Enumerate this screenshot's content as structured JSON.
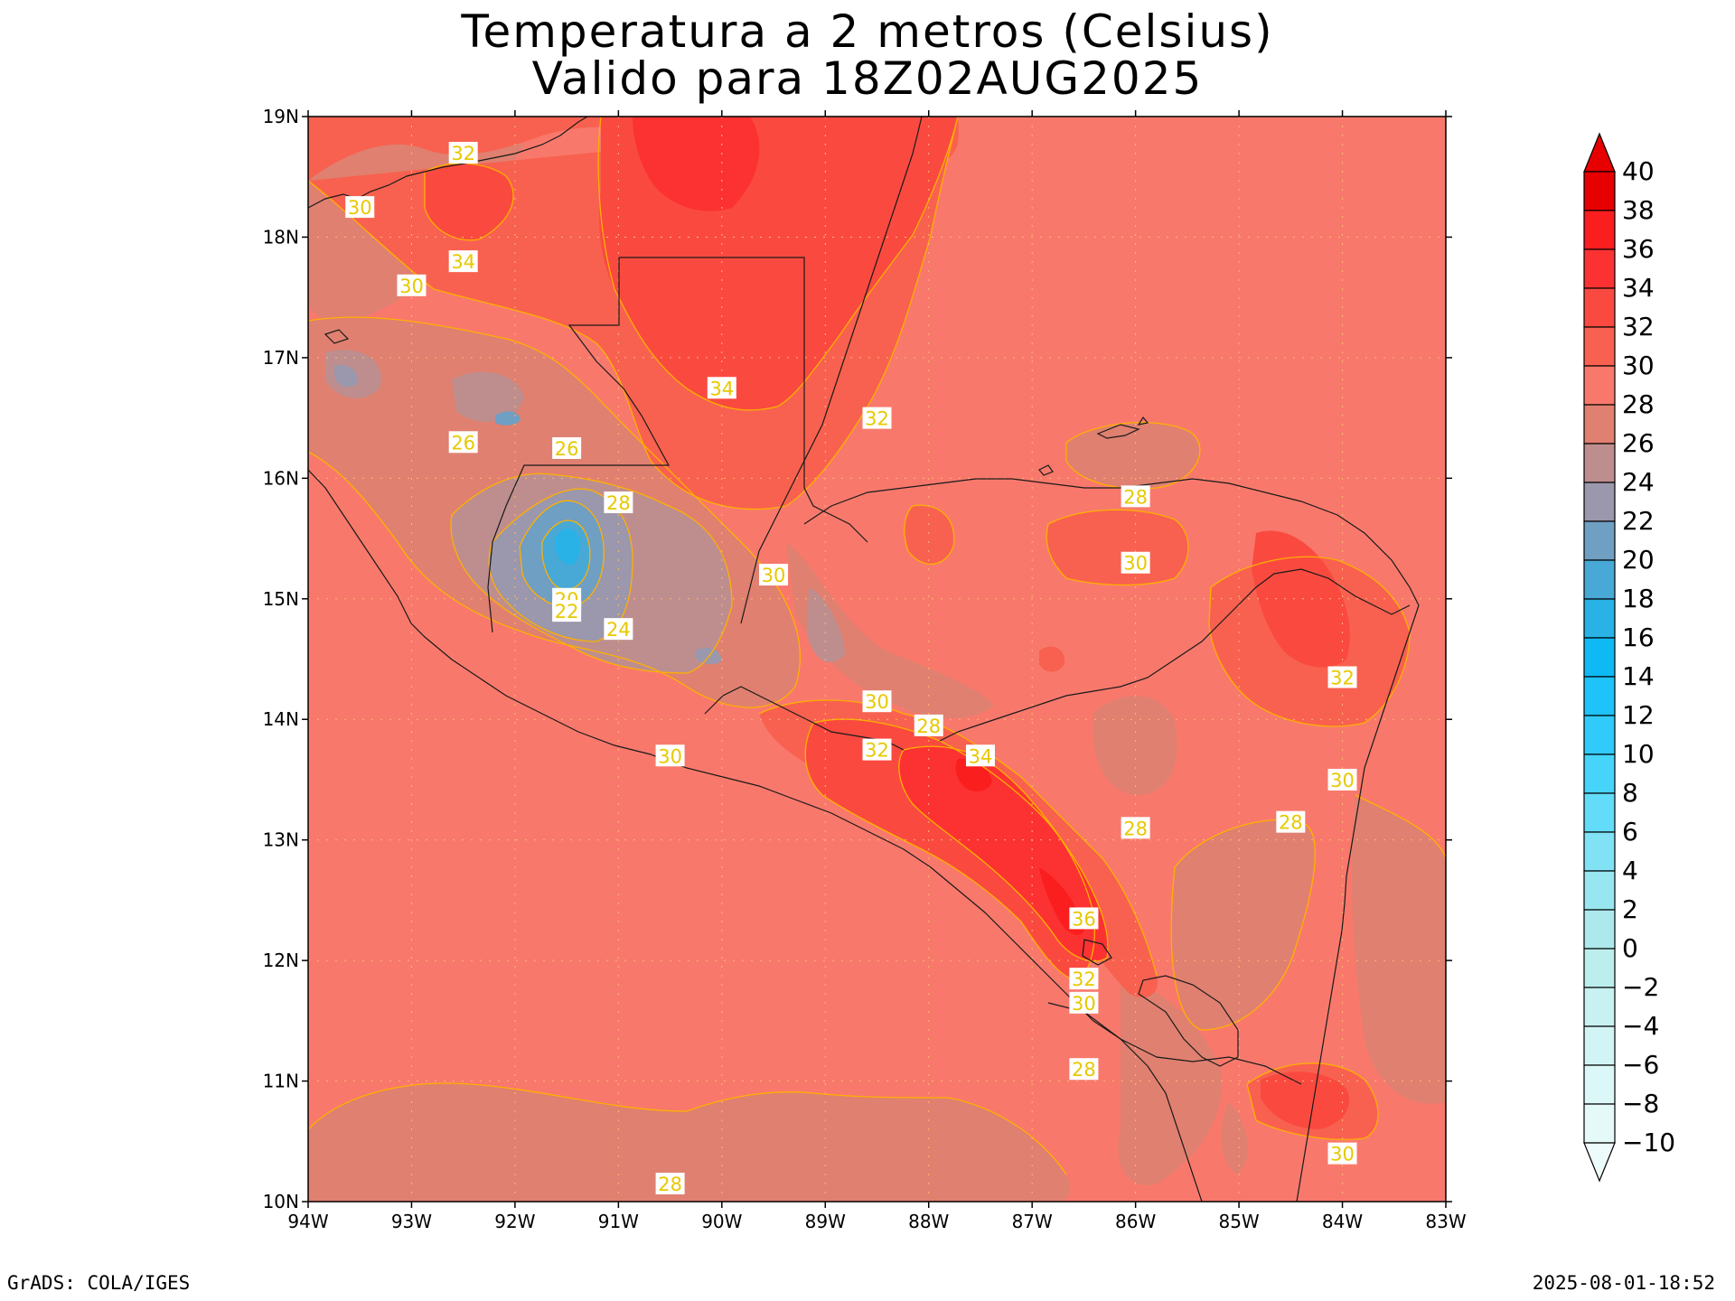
{
  "title": {
    "line1": "Temperatura a 2 metros (Celsius)",
    "line2": "Valido para 18Z02AUG2025"
  },
  "map": {
    "lon_range": [
      -94,
      -83
    ],
    "lat_range": [
      10,
      19
    ],
    "lon_ticks": [
      "94W",
      "93W",
      "92W",
      "91W",
      "90W",
      "89W",
      "88W",
      "87W",
      "86W",
      "85W",
      "84W",
      "83W"
    ],
    "lat_ticks": [
      "10N",
      "11N",
      "12N",
      "13N",
      "14N",
      "15N",
      "16N",
      "17N",
      "18N",
      "19N"
    ],
    "grid": true,
    "background_color": "#f8796c",
    "contour_line_color": "#ffb000",
    "contour_labels": [
      {
        "text": "32",
        "lon": -92.5,
        "lat": 18.7
      },
      {
        "text": "30",
        "lon": -93.5,
        "lat": 18.25
      },
      {
        "text": "34",
        "lon": -92.5,
        "lat": 17.8
      },
      {
        "text": "30",
        "lon": -93.0,
        "lat": 17.6
      },
      {
        "text": "34",
        "lon": -90.0,
        "lat": 16.75
      },
      {
        "text": "32",
        "lon": -88.5,
        "lat": 16.5
      },
      {
        "text": "26",
        "lon": -92.5,
        "lat": 16.3
      },
      {
        "text": "26",
        "lon": -91.5,
        "lat": 16.25
      },
      {
        "text": "28",
        "lon": -91.0,
        "lat": 15.8
      },
      {
        "text": "28",
        "lon": -86.0,
        "lat": 15.85
      },
      {
        "text": "30",
        "lon": -86.0,
        "lat": 15.3
      },
      {
        "text": "30",
        "lon": -89.5,
        "lat": 15.2
      },
      {
        "text": "20",
        "lon": -91.5,
        "lat": 15.0
      },
      {
        "text": "22",
        "lon": -91.5,
        "lat": 14.9
      },
      {
        "text": "24",
        "lon": -91.0,
        "lat": 14.75
      },
      {
        "text": "32",
        "lon": -84.0,
        "lat": 14.35
      },
      {
        "text": "30",
        "lon": -88.5,
        "lat": 14.15
      },
      {
        "text": "28",
        "lon": -88.0,
        "lat": 13.95
      },
      {
        "text": "32",
        "lon": -88.5,
        "lat": 13.75
      },
      {
        "text": "34",
        "lon": -87.5,
        "lat": 13.7
      },
      {
        "text": "30",
        "lon": -90.5,
        "lat": 13.7
      },
      {
        "text": "30",
        "lon": -84.0,
        "lat": 13.5
      },
      {
        "text": "28",
        "lon": -84.5,
        "lat": 13.15
      },
      {
        "text": "28",
        "lon": -86.0,
        "lat": 13.1
      },
      {
        "text": "36",
        "lon": -86.5,
        "lat": 12.35
      },
      {
        "text": "32",
        "lon": -86.5,
        "lat": 11.85
      },
      {
        "text": "30",
        "lon": -86.5,
        "lat": 11.65
      },
      {
        "text": "28",
        "lon": -86.5,
        "lat": 11.1
      },
      {
        "text": "30",
        "lon": -84.0,
        "lat": 10.4
      },
      {
        "text": "28",
        "lon": -90.5,
        "lat": 10.15
      }
    ]
  },
  "colorbar": {
    "labels": [
      "40",
      "38",
      "36",
      "34",
      "32",
      "30",
      "28",
      "26",
      "24",
      "22",
      "20",
      "18",
      "16",
      "14",
      "12",
      "10",
      "8",
      "6",
      "4",
      "2",
      "0",
      "−2",
      "−4",
      "−6",
      "−8",
      "−10"
    ],
    "colors": [
      "#e60000",
      "#fa1e1e",
      "#fc3232",
      "#fa4a40",
      "#f8614f",
      "#f8796c",
      "#e08070",
      "#be8e8f",
      "#9b97ac",
      "#6f9fc3",
      "#48a9d6",
      "#28b2e6",
      "#0fbaf4",
      "#1ec3fa",
      "#30cbfa",
      "#46d4fa",
      "#62dcf8",
      "#80e2f4",
      "#98e6ef",
      "#ade9ec",
      "#bdeeee",
      "#c8f1f1",
      "#d2f4f4",
      "#dcf7f7",
      "#e6f9f9"
    ],
    "top_arrow_color": "#e60000",
    "bottom_arrow_color": "#eefbfb"
  },
  "footer": {
    "left": "GrADS: COLA/IGES",
    "right": "2025-08-01-18:52"
  }
}
